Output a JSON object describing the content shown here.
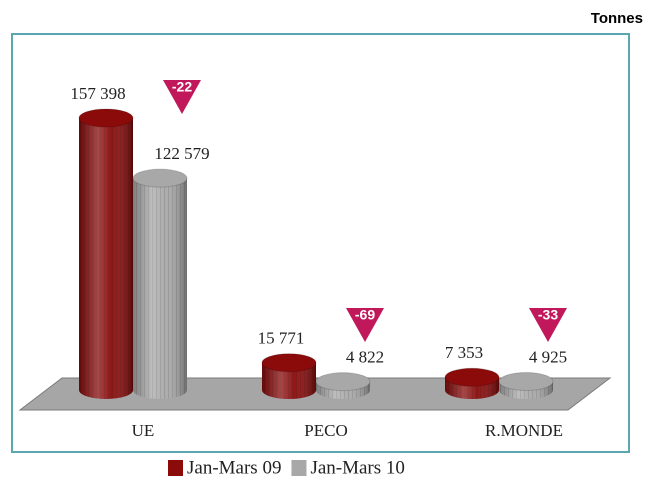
{
  "chart_data": {
    "type": "bar",
    "unit": "Tonnes",
    "categories": [
      "UE",
      "PECO",
      "R.MONDE"
    ],
    "series": [
      {
        "name": "Jan-Mars 09",
        "color": "#8b0a0a",
        "values": [
          157398,
          15771,
          7353
        ],
        "value_labels": [
          "157 398",
          "15 771",
          "7 353"
        ]
      },
      {
        "name": "Jan-Mars 10",
        "color": "#a8a8a8",
        "values": [
          122579,
          4822,
          4925
        ],
        "value_labels": [
          "122 579",
          "4 822",
          "4 925"
        ]
      }
    ],
    "annotations": [
      "-22",
      "-69",
      "-33"
    ],
    "annotation_color": "#c0185a"
  }
}
